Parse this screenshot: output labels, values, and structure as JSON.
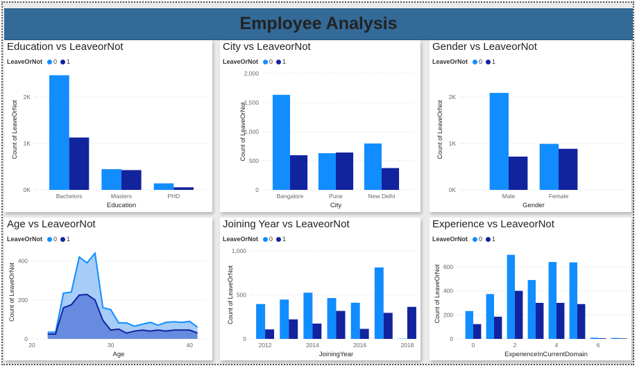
{
  "title": "Employee Analysis",
  "colors": {
    "leave0": "#118dff",
    "leave1": "#12239e",
    "area0": "#a5cdf7",
    "area1": "#5c7fd9"
  },
  "chart_data": [
    {
      "type": "bar",
      "title": "Education vs LeaveorNot",
      "legend_title": "LeaveOrNot",
      "legend_entries": [
        "0",
        "1"
      ],
      "xlabel": "Education",
      "ylabel": "Count of LeaveOrNot",
      "categories": [
        "Bachelors",
        "Masters",
        "PHD"
      ],
      "series": [
        {
          "name": "0",
          "values": [
            2472,
            447,
            141
          ]
        },
        {
          "name": "1",
          "values": [
            1129,
            427,
            56
          ]
        }
      ],
      "ylim": [
        0,
        2600
      ],
      "yticks": [
        0,
        1000,
        2000
      ],
      "ytick_labels": [
        "0K",
        "1K",
        "2K"
      ],
      "grid": true,
      "legend_position": "top-left"
    },
    {
      "type": "bar",
      "title": "City vs LeaveorNot",
      "legend_title": "LeaveOrNot",
      "legend_entries": [
        "0",
        "1"
      ],
      "xlabel": "City",
      "ylabel": "Count of LeaveOrNot",
      "categories": [
        "Bangalore",
        "Pune",
        "New Delhi"
      ],
      "series": [
        {
          "name": "0",
          "values": [
            1633,
            630,
            797
          ]
        },
        {
          "name": "1",
          "values": [
            595,
            642,
            375
          ]
        }
      ],
      "ylim": [
        0,
        2000
      ],
      "yticks": [
        0,
        500,
        1000,
        1500,
        2000
      ],
      "ytick_labels": [
        "0",
        "500",
        "1,000",
        "1,500",
        "2,000"
      ],
      "grid": true,
      "legend_position": "top-left"
    },
    {
      "type": "bar",
      "title": "Gender vs LeaveorNot",
      "legend_title": "LeaveOrNot",
      "legend_entries": [
        "0",
        "1"
      ],
      "xlabel": "Gender",
      "ylabel": "Count of LeaveOrNot",
      "categories": [
        "Male",
        "Female"
      ],
      "series": [
        {
          "name": "0",
          "values": [
            2091,
            992
          ]
        },
        {
          "name": "1",
          "values": [
            718,
            886
          ]
        }
      ],
      "ylim": [
        0,
        2600
      ],
      "yticks": [
        0,
        1000,
        2000
      ],
      "ytick_labels": [
        "0K",
        "1K",
        "2K"
      ],
      "grid": true,
      "legend_position": "top-left"
    },
    {
      "type": "area",
      "title": "Age vs LeaveorNot",
      "legend_title": "LeaveOrNot",
      "legend_entries": [
        "0",
        "1"
      ],
      "xlabel": "Age",
      "ylabel": "Count of LeaveOrNot",
      "x": [
        22,
        23,
        24,
        25,
        26,
        27,
        28,
        29,
        30,
        31,
        32,
        33,
        34,
        35,
        36,
        37,
        38,
        39,
        40,
        41
      ],
      "series": [
        {
          "name": "0",
          "values": [
            35,
            35,
            235,
            240,
            420,
            390,
            440,
            160,
            150,
            82,
            82,
            65,
            75,
            85,
            70,
            85,
            88,
            85,
            90,
            60
          ]
        },
        {
          "name": "1",
          "values": [
            25,
            25,
            160,
            175,
            225,
            228,
            200,
            95,
            45,
            50,
            30,
            40,
            45,
            40,
            45,
            40,
            45,
            45,
            45,
            30
          ]
        }
      ],
      "xlim": [
        20,
        42
      ],
      "xticks": [
        20,
        30,
        40
      ],
      "xtick_labels": [
        "20",
        "30",
        "40"
      ],
      "ylim": [
        0,
        480
      ],
      "yticks": [
        0,
        200,
        400
      ],
      "ytick_labels": [
        "0",
        "200",
        "400"
      ],
      "grid": true,
      "legend_position": "top-left"
    },
    {
      "type": "bar",
      "title": "Joining Year vs LeaveorNot",
      "legend_title": "LeaveOrNot",
      "legend_entries": [
        "0",
        "1"
      ],
      "xlabel": "JoiningYear",
      "ylabel": "Count of LeaveOrNot",
      "categories": [
        "2012",
        "2013",
        "2014",
        "2015",
        "2016",
        "2017",
        "2018"
      ],
      "series": [
        {
          "name": "0",
          "values": [
            396,
            447,
            525,
            464,
            411,
            812,
            3
          ]
        },
        {
          "name": "1",
          "values": [
            108,
            222,
            174,
            318,
            114,
            296,
            364
          ]
        }
      ],
      "ylim": [
        0,
        1000
      ],
      "yticks": [
        0,
        500,
        1000
      ],
      "ytick_labels": [
        "0",
        "500",
        "1,000"
      ],
      "xtick_labels_shown": [
        "2012",
        "2014",
        "2016",
        "2018"
      ],
      "grid": true,
      "legend_position": "top-left"
    },
    {
      "type": "bar",
      "title": "Experience vs LeaveorNot",
      "legend_title": "LeaveOrNot",
      "legend_entries": [
        "0",
        "1"
      ],
      "xlabel": "ExperienceInCurrentDomain",
      "ylabel": "Count of LeaveOrNot",
      "categories": [
        "0",
        "1",
        "2",
        "3",
        "4",
        "5",
        "6",
        "7"
      ],
      "series": [
        {
          "name": "0",
          "values": [
            232,
            373,
            700,
            490,
            640,
            637,
            10,
            8
          ]
        },
        {
          "name": "1",
          "values": [
            123,
            185,
            400,
            300,
            300,
            290,
            5,
            4
          ]
        }
      ],
      "ylim": [
        0,
        750
      ],
      "yticks": [
        0,
        200,
        400,
        600
      ],
      "ytick_labels": [
        "0",
        "200",
        "400",
        "600"
      ],
      "xtick_labels_shown": [
        "0",
        "2",
        "4",
        "6"
      ],
      "grid": true,
      "legend_position": "top-left"
    }
  ]
}
